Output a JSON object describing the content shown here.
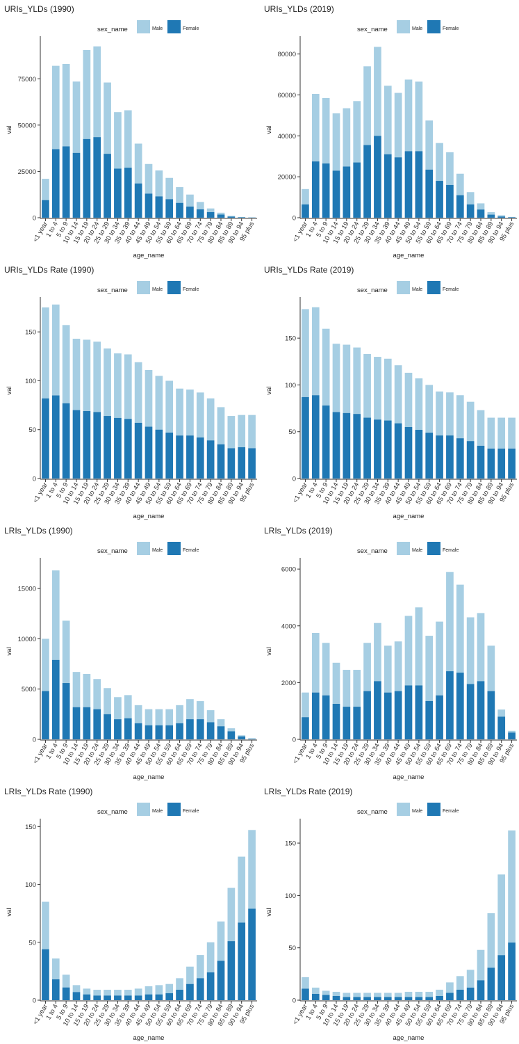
{
  "colors": {
    "male": "#a6cee3",
    "female": "#1f78b4",
    "axis": "#333333"
  },
  "legend": {
    "title": "sex_name",
    "male_label": "Male",
    "female_label": "Female"
  },
  "chart_data": [
    {
      "type": "bar",
      "stacked": true,
      "title": "URIs_YLDs (1990)",
      "xlabel": "age_name",
      "ylabel": "val",
      "ylim": [
        0,
        95000
      ],
      "yticks": [
        0,
        25000,
        50000,
        75000
      ],
      "categories": [
        "<1 year",
        "1 to 4",
        "5 to 9",
        "10 to 14",
        "15 to 19",
        "20 to 24",
        "25 to 29",
        "30 to 34",
        "35 to 39",
        "40 to 44",
        "45 to 49",
        "50 to 54",
        "55 to 59",
        "60 to 64",
        "65 to 69",
        "70 to 74",
        "75 to 79",
        "80 to 84",
        "85 to 89",
        "90 to 94",
        "95 plus"
      ],
      "series": [
        {
          "name": "Female",
          "values": [
            9500,
            37000,
            38500,
            35000,
            42500,
            43500,
            34500,
            26500,
            27000,
            18500,
            13000,
            11500,
            10000,
            8000,
            6000,
            4500,
            3000,
            1700,
            600,
            200,
            80
          ]
        },
        {
          "name": "Male",
          "values": [
            11500,
            45000,
            44500,
            38500,
            48000,
            49000,
            38500,
            30500,
            31000,
            21500,
            16000,
            14000,
            11500,
            8500,
            6500,
            4000,
            2000,
            1000,
            400,
            200,
            150
          ]
        }
      ]
    },
    {
      "type": "bar",
      "stacked": true,
      "title": "URIs_YLDs (2019)",
      "xlabel": "age_name",
      "ylabel": "val",
      "ylim": [
        0,
        86000
      ],
      "yticks": [
        0,
        20000,
        40000,
        60000,
        80000
      ],
      "categories": [
        "<1 year",
        "1 to 4",
        "5 to 9",
        "10 to 14",
        "15 to 19",
        "20 to 24",
        "25 to 29",
        "30 to 34",
        "35 to 39",
        "40 to 44",
        "45 to 49",
        "50 to 54",
        "55 to 59",
        "60 to 64",
        "65 to 69",
        "70 to 74",
        "75 to 79",
        "80 to 84",
        "85 to 89",
        "90 to 94",
        "95 plus"
      ],
      "series": [
        {
          "name": "Female",
          "values": [
            6500,
            27500,
            26500,
            23000,
            25000,
            27000,
            35500,
            40000,
            31000,
            29500,
            32500,
            32500,
            23500,
            18000,
            16000,
            11000,
            6500,
            4000,
            1500,
            600,
            200
          ]
        },
        {
          "name": "Male",
          "values": [
            7500,
            33000,
            32000,
            28000,
            28500,
            30000,
            38500,
            43500,
            33500,
            31500,
            35000,
            34000,
            24000,
            18500,
            16000,
            10500,
            6000,
            3000,
            1200,
            600,
            200
          ]
        }
      ]
    },
    {
      "type": "bar",
      "stacked": true,
      "title": "URIs_YLDs Rate (1990)",
      "xlabel": "age_name",
      "ylabel": "val",
      "ylim": [
        0,
        180
      ],
      "yticks": [
        0,
        50,
        100,
        150
      ],
      "categories": [
        "<1 year",
        "1 to 4",
        "5 to 9",
        "10 to 14",
        "15 to 19",
        "20 to 24",
        "25 to 29",
        "30 to 34",
        "35 to 39",
        "40 to 44",
        "45 to 49",
        "50 to 54",
        "55 to 59",
        "60 to 64",
        "65 to 69",
        "70 to 74",
        "75 to 79",
        "80 to 84",
        "85 to 89",
        "90 to 94",
        "95 plus"
      ],
      "series": [
        {
          "name": "Female",
          "values": [
            82,
            85,
            77,
            70,
            69,
            68,
            64,
            62,
            61,
            57,
            53,
            50,
            47,
            44,
            44,
            42,
            39,
            35,
            31,
            32,
            31
          ]
        },
        {
          "name": "Male",
          "values": [
            93,
            93,
            80,
            73,
            73,
            72,
            69,
            66,
            66,
            62,
            58,
            55,
            53,
            48,
            47,
            46,
            43,
            38,
            33,
            33,
            34
          ]
        }
      ]
    },
    {
      "type": "bar",
      "stacked": true,
      "title": "URIs_YLDs Rate (2019)",
      "xlabel": "age_name",
      "ylabel": "val",
      "ylim": [
        0,
        188
      ],
      "yticks": [
        0,
        50,
        100,
        150
      ],
      "categories": [
        "<1 year",
        "1 to 4",
        "5 to 9",
        "10 to 14",
        "15 to 19",
        "20 to 24",
        "25 to 29",
        "30 to 34",
        "35 to 39",
        "40 to 44",
        "45 to 49",
        "50 to 54",
        "55 to 59",
        "60 to 64",
        "65 to 69",
        "70 to 74",
        "75 to 79",
        "80 to 84",
        "85 to 89",
        "90 to 94",
        "95 plus"
      ],
      "series": [
        {
          "name": "Female",
          "values": [
            87,
            89,
            78,
            71,
            70,
            69,
            65,
            63,
            62,
            59,
            55,
            52,
            49,
            46,
            46,
            43,
            40,
            35,
            32,
            32,
            32
          ]
        },
        {
          "name": "Male",
          "values": [
            94,
            94,
            82,
            73,
            73,
            71,
            68,
            67,
            66,
            62,
            58,
            55,
            51,
            47,
            46,
            46,
            42,
            38,
            33,
            33,
            33
          ]
        }
      ]
    },
    {
      "type": "bar",
      "stacked": true,
      "title": "LRIs_YLDs (1990)",
      "xlabel": "age_name",
      "ylabel": "val",
      "ylim": [
        0,
        17500
      ],
      "yticks": [
        0,
        5000,
        10000,
        15000
      ],
      "categories": [
        "<1 year",
        "1 to 4",
        "5 to 9",
        "10 to 14",
        "15 to 19",
        "20 to 24",
        "25 to 29",
        "30 to 34",
        "35 to 39",
        "40 to 44",
        "45 to 49",
        "50 to 54",
        "55 to 59",
        "60 to 64",
        "65 to 69",
        "70 to 74",
        "75 to 79",
        "80 to 84",
        "85 to 89",
        "90 to 94",
        "95 plus"
      ],
      "series": [
        {
          "name": "Female",
          "values": [
            4800,
            7900,
            5600,
            3200,
            3200,
            3000,
            2500,
            2000,
            2100,
            1600,
            1400,
            1400,
            1400,
            1600,
            2000,
            2000,
            1700,
            1300,
            800,
            300,
            60
          ]
        },
        {
          "name": "Male",
          "values": [
            5200,
            8900,
            6200,
            3500,
            3300,
            3000,
            2600,
            2200,
            2300,
            1800,
            1600,
            1600,
            1600,
            1800,
            2000,
            1800,
            1200,
            700,
            300,
            100,
            40
          ]
        }
      ]
    },
    {
      "type": "bar",
      "stacked": true,
      "title": "LRIs_YLDs (2019)",
      "xlabel": "age_name",
      "ylabel": "val",
      "ylim": [
        0,
        6200
      ],
      "yticks": [
        0,
        2000,
        4000,
        6000
      ],
      "categories": [
        "<1 year",
        "1 to 4",
        "5 to 9",
        "10 to 14",
        "15 to 19",
        "20 to 24",
        "25 to 29",
        "30 to 34",
        "35 to 39",
        "40 to 44",
        "45 to 49",
        "50 to 54",
        "55 to 59",
        "60 to 64",
        "65 to 69",
        "70 to 74",
        "75 to 79",
        "80 to 84",
        "85 to 89",
        "90 to 94",
        "95 plus"
      ],
      "series": [
        {
          "name": "Female",
          "values": [
            780,
            1650,
            1550,
            1250,
            1150,
            1150,
            1700,
            2050,
            1650,
            1700,
            1900,
            1900,
            1350,
            1550,
            2400,
            2350,
            1950,
            2050,
            1700,
            800,
            240
          ]
        },
        {
          "name": "Male",
          "values": [
            870,
            2100,
            1850,
            1450,
            1300,
            1300,
            1700,
            2050,
            1650,
            1750,
            2450,
            2750,
            2300,
            2600,
            3500,
            3100,
            2350,
            2400,
            1600,
            250,
            60
          ]
        }
      ]
    },
    {
      "type": "bar",
      "stacked": true,
      "title": "LRIs_YLDs Rate (1990)",
      "xlabel": "age_name",
      "ylabel": "val",
      "ylim": [
        0,
        152
      ],
      "yticks": [
        0,
        50,
        100,
        150
      ],
      "categories": [
        "<1 year",
        "1 to 4",
        "5 to 9",
        "10 to 14",
        "15 to 19",
        "20 to 24",
        "25 to 29",
        "30 to 34",
        "35 to 39",
        "40 to 44",
        "45 to 49",
        "50 to 54",
        "55 to 59",
        "60 to 64",
        "65 to 69",
        "70 to 74",
        "75 to 79",
        "80 to 84",
        "85 to 89",
        "90 to 94",
        "95 plus"
      ],
      "series": [
        {
          "name": "Female",
          "values": [
            44,
            18,
            11,
            7,
            5,
            4,
            4,
            4,
            4,
            4,
            5,
            5,
            6,
            9,
            14,
            19,
            24,
            34,
            51,
            67,
            79
          ]
        },
        {
          "name": "Male",
          "values": [
            41,
            18,
            11,
            6,
            5,
            5,
            5,
            5,
            5,
            6,
            7,
            8,
            8,
            10,
            15,
            20,
            26,
            34,
            46,
            57,
            68
          ]
        }
      ]
    },
    {
      "type": "bar",
      "stacked": true,
      "title": "LRIs_YLDs Rate (2019)",
      "xlabel": "age_name",
      "ylabel": "val",
      "ylim": [
        0,
        168
      ],
      "yticks": [
        0,
        50,
        100,
        150
      ],
      "categories": [
        "<1 year",
        "1 to 4",
        "5 to 9",
        "10 to 14",
        "15 to 19",
        "20 to 24",
        "25 to 29",
        "30 to 34",
        "35 to 39",
        "40 to 44",
        "45 to 49",
        "50 to 54",
        "55 to 59",
        "60 to 64",
        "65 to 69",
        "70 to 74",
        "75 to 79",
        "80 to 84",
        "85 to 89",
        "90 to 94",
        "95 plus"
      ],
      "series": [
        {
          "name": "Female",
          "values": [
            11,
            6,
            5,
            4,
            3,
            3,
            3,
            3,
            3,
            3,
            3,
            3,
            3,
            4,
            7,
            10,
            12,
            19,
            31,
            43,
            55
          ]
        },
        {
          "name": "Male",
          "values": [
            11,
            6,
            4,
            4,
            4,
            4,
            4,
            4,
            4,
            4,
            5,
            5,
            5,
            6,
            10,
            13,
            17,
            29,
            52,
            77,
            107
          ]
        }
      ]
    }
  ]
}
